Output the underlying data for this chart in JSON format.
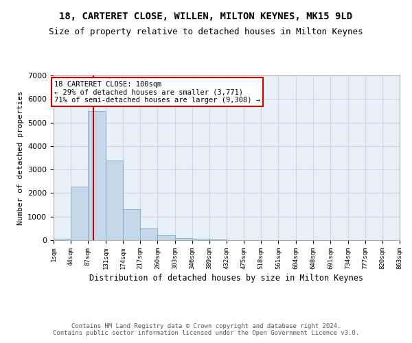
{
  "title1": "18, CARTERET CLOSE, WILLEN, MILTON KEYNES, MK15 9LD",
  "title2": "Size of property relative to detached houses in Milton Keynes",
  "xlabel": "Distribution of detached houses by size in Milton Keynes",
  "ylabel": "Number of detached properties",
  "footnote": "Contains HM Land Registry data © Crown copyright and database right 2024.\nContains public sector information licensed under the Open Government Licence v3.0.",
  "bar_heights": [
    70,
    2280,
    5470,
    3390,
    1310,
    490,
    190,
    90,
    55,
    20,
    5,
    2,
    1,
    1,
    1,
    1,
    1,
    1,
    1,
    1
  ],
  "bin_edges": [
    1,
    44,
    87,
    131,
    174,
    217,
    260,
    303,
    346,
    389,
    432,
    475,
    518,
    561,
    604,
    648,
    691,
    734,
    777,
    820,
    863
  ],
  "bar_color": "#c5d8ea",
  "bar_edgecolor": "#7aaac8",
  "red_line_x": 100,
  "annotation_text": "18 CARTERET CLOSE: 100sqm\n← 29% of detached houses are smaller (3,771)\n71% of semi-detached houses are larger (9,308) →",
  "annotation_box_color": "#ffffff",
  "annotation_border_color": "#cc0000",
  "ylim": [
    0,
    7000
  ],
  "grid_color": "#c8d8e8",
  "background_color": "#e8f0f8"
}
